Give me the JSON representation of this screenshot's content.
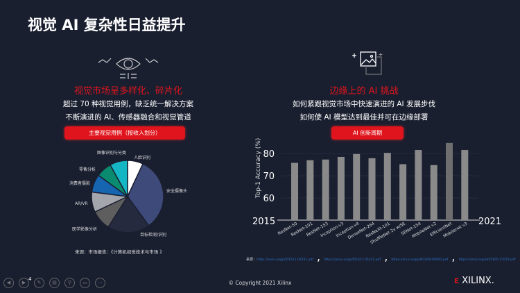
{
  "title": "视觉 AI 复杂性日益提升",
  "left": {
    "heading": "视觉市场呈多样化、碎片化",
    "line1": "超过 70 种视觉用例，缺乏统一解决方案",
    "line2": "不断演进的 AI、传感器融合和视觉管道",
    "button": "主要视觉用例（按收入划分）",
    "source": "来源：市场报告：《计算机视觉技术与市场 》"
  },
  "right": {
    "heading": "边缘上的 AI 挑战",
    "line1": "如何紧跟视觉市场中快速演进的 AI 发展步伐",
    "line2": "如何使 AI 模型达到最佳并可在边缘部署",
    "button": "AI 创新周期",
    "source_prefix": "来源：",
    "links": [
      "https://arxiv.org/pdf/1611.05431.pdf",
      "https://arxiv.org/pdf/1611.05431.pdf",
      "https://arxiv.org/pdf/1608.06993.pdf",
      "https://arxiv.org/pdf/1905.07678.pdf"
    ]
  },
  "chart_data": [
    {
      "type": "pie",
      "title": "主要视觉用例（按收入划分）",
      "labels": [
        "人脸识别",
        "安全摄像头",
        "目标检测/识别",
        "医学影像分析",
        "AR/VR",
        "消费者摄影",
        "零售分析",
        "图像识别与分类"
      ],
      "values": [
        7,
        33,
        19,
        9,
        9,
        8,
        7,
        8
      ],
      "colors": [
        "#ffffff",
        "#3d4a7a",
        "#262a3e",
        "#5e5e5e",
        "#a4a6ad",
        "#1565b0",
        "#0a8a6e",
        "#15b6c4"
      ]
    },
    {
      "type": "bar",
      "ylabel": "Top-1 Accuracy (%)",
      "x_start": "2015",
      "x_end": "2021",
      "yticks": [
        60,
        70,
        80
      ],
      "ylim": [
        50,
        86
      ],
      "categories": [
        "ResNet-50",
        "ResNet-101",
        "ResNet-153",
        "Inception-v3",
        "Inception-v4",
        "DenseNet-264",
        "ResNeXt-101",
        "ShuffleNet 2x w/SE",
        "SENet-154",
        "MobileNet v2",
        "EfficientNet",
        "Mobilenet v3"
      ],
      "values": [
        75.8,
        77.0,
        77.3,
        78.5,
        79.8,
        77.9,
        80.3,
        75.2,
        81.6,
        74.8,
        84.8,
        81.6
      ]
    }
  ],
  "footer": {
    "copyright": "© Copyright 2021 Xilinx",
    "logo": "XILINX.",
    "page": "4"
  },
  "colors": {
    "accent": "#e0141c",
    "bar": "#8a8a8a",
    "bg": "#1a1f30"
  }
}
